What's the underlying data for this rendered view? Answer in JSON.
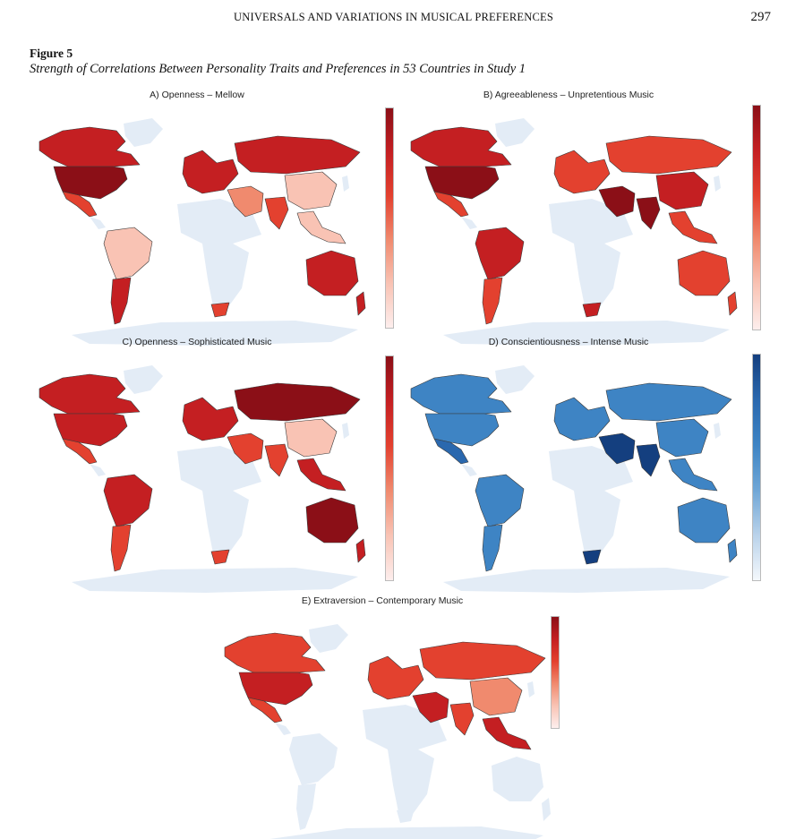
{
  "header": {
    "running_head": "UNIVERSALS AND VARIATIONS IN MUSICAL PREFERENCES",
    "page_number": "297"
  },
  "figure": {
    "label": "Figure 5",
    "caption": "Strength of Correlations Between Personality Traits and Preferences in 53 Countries in Study 1"
  },
  "colors": {
    "no_data": "#e3ecf6",
    "country_border": "#3a3a3a",
    "red_scale": [
      "#fdeeed",
      "#f9c3b4",
      "#f08a6e",
      "#e3412f",
      "#c41f22",
      "#8b0f17"
    ],
    "blue_scale": [
      "#f4f8fc",
      "#b9d2ea",
      "#6fa6d6",
      "#3e84c4",
      "#2a68ae",
      "#143f7f"
    ]
  },
  "chart_data": [
    {
      "type": "map",
      "title": "A) Openness – Mellow",
      "colorscale": "reds",
      "regions": {
        "north_america": 4,
        "usa": 5,
        "mexico": 3,
        "south_america_north": 1,
        "south_america_south": 4,
        "europe": 4,
        "russia": 4,
        "middle_east": 2,
        "india": 3,
        "china": 1,
        "southeast_asia": 1,
        "south_africa": 3,
        "australia": 4,
        "new_zealand": 4
      }
    },
    {
      "type": "map",
      "title": "B) Agreeableness – Unpretentious Music",
      "colorscale": "reds",
      "regions": {
        "north_america": 4,
        "usa": 5,
        "mexico": 3,
        "south_america_north": 4,
        "south_america_south": 3,
        "europe": 3,
        "russia": 3,
        "middle_east": 5,
        "india": 5,
        "china": 4,
        "southeast_asia": 3,
        "south_africa": 4,
        "australia": 3,
        "new_zealand": 3
      }
    },
    {
      "type": "map",
      "title": "C) Openness – Sophisticated Music",
      "colorscale": "reds",
      "regions": {
        "north_america": 4,
        "usa": 4,
        "mexico": 3,
        "south_america_north": 4,
        "south_america_south": 3,
        "europe": 4,
        "russia": 5,
        "middle_east": 3,
        "india": 3,
        "china": 1,
        "southeast_asia": 4,
        "south_africa": 3,
        "australia": 5,
        "new_zealand": 4
      }
    },
    {
      "type": "map",
      "title": "D) Conscientiousness – Intense Music",
      "colorscale": "blues",
      "regions": {
        "north_america": 3,
        "usa": 3,
        "mexico": 4,
        "south_america_north": 3,
        "south_america_south": 3,
        "europe": 3,
        "russia": 3,
        "middle_east": 5,
        "india": 5,
        "china": 3,
        "southeast_asia": 3,
        "south_africa": 5,
        "australia": 3,
        "new_zealand": 3
      }
    },
    {
      "type": "map",
      "title": "E) Extraversion – Contemporary Music",
      "colorscale": "reds",
      "regions": {
        "north_america": 3,
        "usa": 4,
        "mexico": 3,
        "europe": 3,
        "russia": 3,
        "middle_east": 4,
        "india": 3,
        "china": 2,
        "southeast_asia": 4
      }
    }
  ]
}
